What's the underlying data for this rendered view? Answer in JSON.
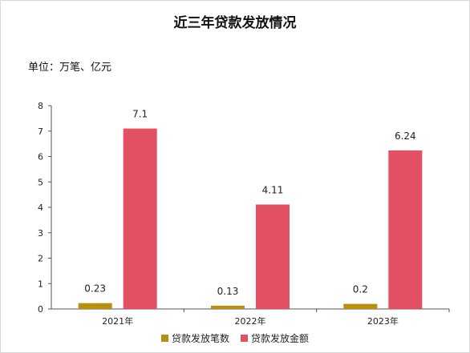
{
  "chart_data": {
    "type": "bar",
    "title": "近三年贷款发放情况",
    "unit_label": "单位：万笔、亿元",
    "categories": [
      "2021年",
      "2022年",
      "2023年"
    ],
    "series": [
      {
        "name": "贷款发放笔数",
        "values": [
          0.23,
          0.13,
          0.2
        ],
        "labels": [
          "0.23",
          "0.13",
          "0.2"
        ],
        "color": "#b8900f"
      },
      {
        "name": "贷款发放金额",
        "values": [
          7.1,
          4.11,
          6.24
        ],
        "labels": [
          "7.1",
          "4.11",
          "6.24"
        ],
        "color": "#e35063"
      }
    ],
    "ylim": [
      0,
      8
    ],
    "yticks": [
      "0",
      "1",
      "2",
      "3",
      "4",
      "5",
      "6",
      "7",
      "8"
    ],
    "legend_position": "bottom",
    "grid": false
  }
}
